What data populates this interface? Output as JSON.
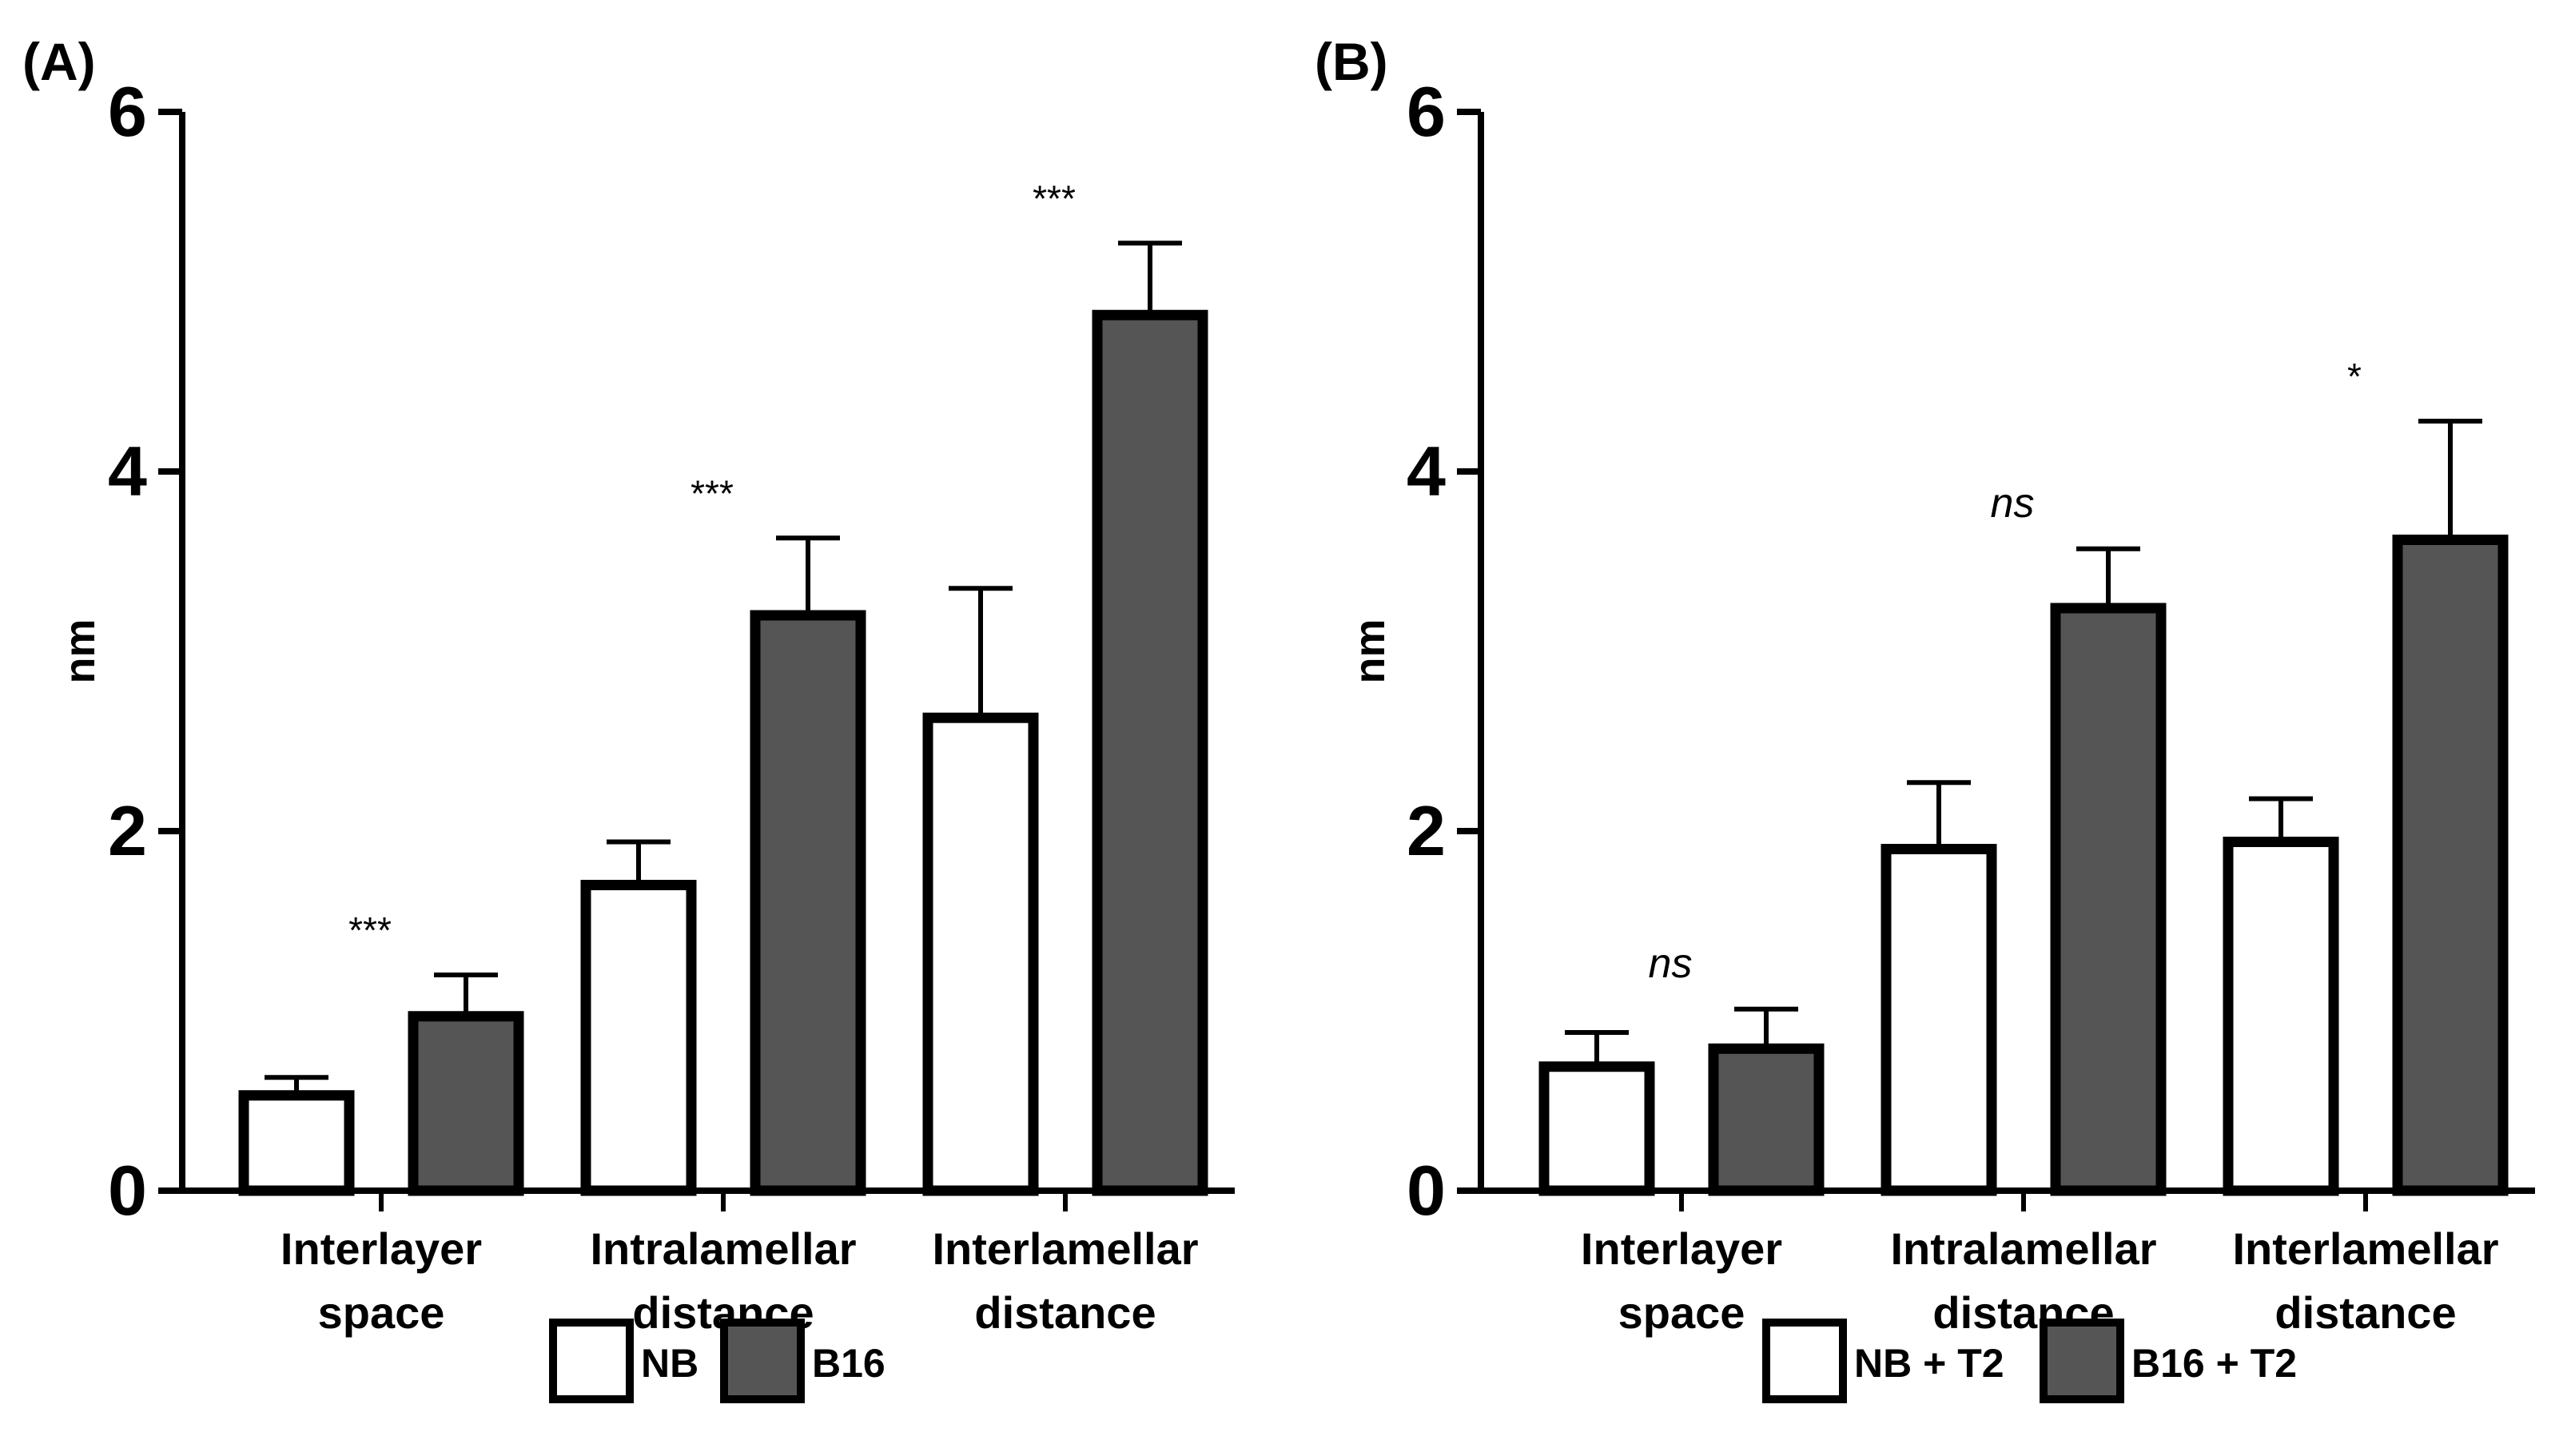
{
  "chart_data": [
    {
      "panel_label": "(A)",
      "type": "bar",
      "ylabel": "nm",
      "ylim": [
        0,
        6
      ],
      "yticks": [
        "0",
        "2",
        "4",
        "6"
      ],
      "categories": [
        {
          "lines": [
            "Interlayer",
            "space"
          ]
        },
        {
          "lines": [
            "Intralamellar",
            "distance"
          ]
        },
        {
          "lines": [
            "Interlamellar",
            "distance"
          ]
        }
      ],
      "series": [
        {
          "name": "NB",
          "color": "#ffffff",
          "values": [
            0.53,
            1.7,
            2.63
          ],
          "errors": [
            0.1,
            0.24,
            0.72
          ]
        },
        {
          "name": "B16",
          "color": "#555555",
          "values": [
            0.97,
            3.2,
            4.87
          ],
          "errors": [
            0.23,
            0.43,
            0.4
          ]
        }
      ],
      "annotations": [
        "***",
        "***",
        "***"
      ]
    },
    {
      "panel_label": "(B)",
      "type": "bar",
      "ylabel": "nm",
      "ylim": [
        0,
        6
      ],
      "yticks": [
        "0",
        "2",
        "4",
        "6"
      ],
      "categories": [
        {
          "lines": [
            "Interlayer",
            "space"
          ]
        },
        {
          "lines": [
            "Intralamellar",
            "distance"
          ]
        },
        {
          "lines": [
            "Interlamellar",
            "distance"
          ]
        }
      ],
      "series": [
        {
          "name": "NB + T2",
          "color": "#ffffff",
          "values": [
            0.69,
            1.9,
            1.94
          ],
          "errors": [
            0.19,
            0.37,
            0.24
          ]
        },
        {
          "name": "B16 + T2",
          "color": "#555555",
          "values": [
            0.79,
            3.24,
            3.62
          ],
          "errors": [
            0.22,
            0.33,
            0.66
          ]
        }
      ],
      "annotations": [
        "ns",
        "ns",
        "*"
      ]
    }
  ]
}
